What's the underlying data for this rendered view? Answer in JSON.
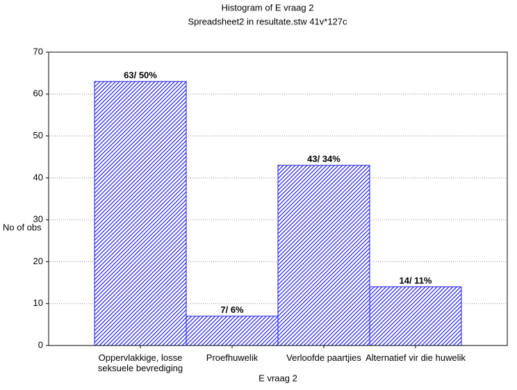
{
  "chart_data": {
    "type": "bar",
    "title": "Histogram of E vraag 2",
    "subtitle": "Spreadsheet2 in resultate.stw 41v*127c",
    "x_label": "E vraag 2",
    "y_label": "No of obs",
    "categories": [
      "Oppervlakkige, losse seksuele bevrediging",
      "Proefhuwelik",
      "Verloofde paartjies",
      "Alternatief vir die huwelik"
    ],
    "values": [
      63,
      7,
      43,
      14
    ],
    "value_labels": [
      "63/ 50%",
      "7/ 6%",
      "43/ 34%",
      "14/ 11%"
    ],
    "color": "#1a1aff",
    "ylim": [
      0,
      70
    ],
    "yticks": [
      0,
      10,
      20,
      30,
      40,
      50,
      60,
      70
    ],
    "grid": true
  }
}
